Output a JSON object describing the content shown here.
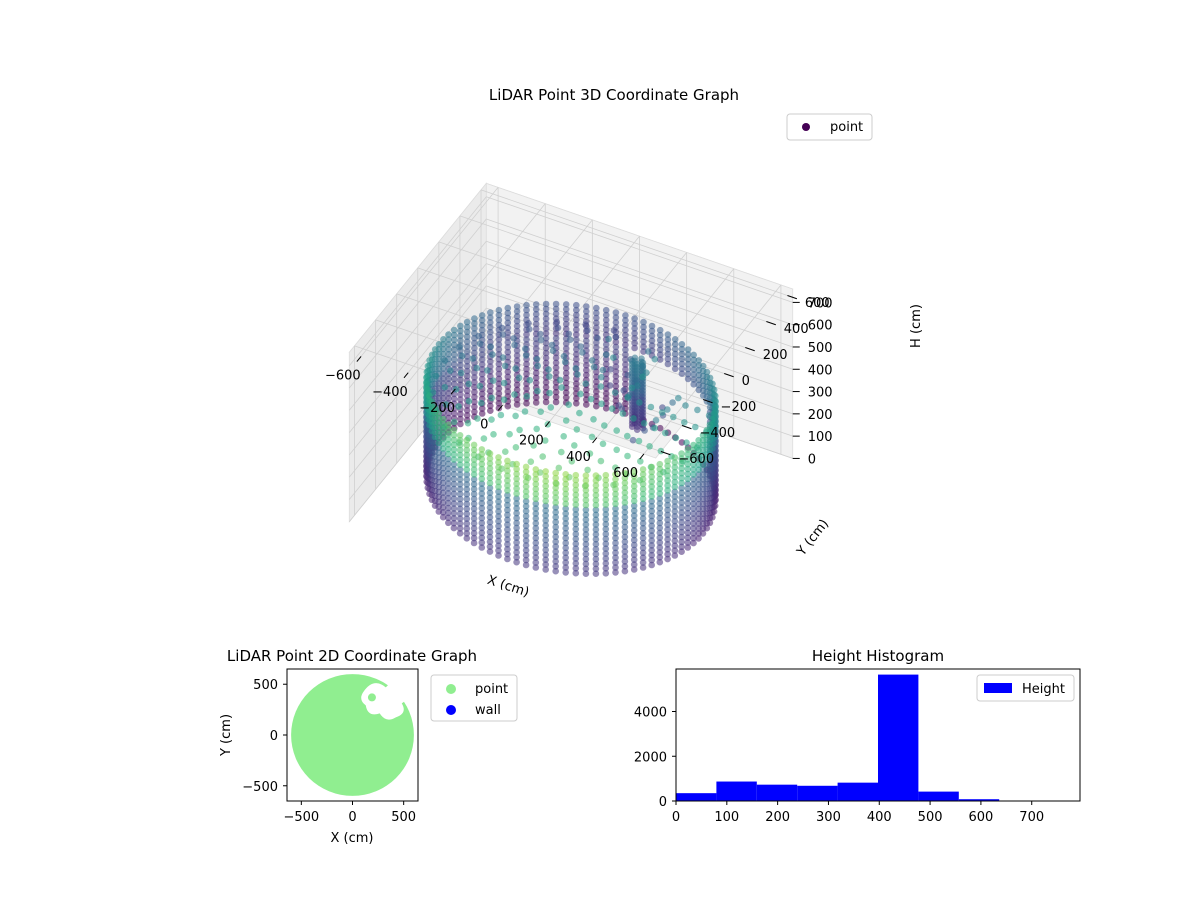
{
  "chart_data": [
    {
      "type": "scatter",
      "projection": "3d",
      "title": "LiDAR Point 3D Coordinate Graph",
      "xlabel": "X (cm)",
      "ylabel": "Y (cm)",
      "zlabel": "H (cm)",
      "xlim": [
        -650,
        650
      ],
      "ylim": [
        -650,
        650
      ],
      "zlim": [
        760,
        0
      ],
      "z_axis_inverted": true,
      "xticks": [
        "−600",
        "−400",
        "−200",
        "0",
        "200",
        "400",
        "600"
      ],
      "yticks": [
        "−600",
        "−400",
        "−200",
        "0",
        "200",
        "400",
        "600"
      ],
      "zticks": [
        "0",
        "100",
        "200",
        "300",
        "400",
        "500",
        "600",
        "700"
      ],
      "grid": true,
      "colormap": "viridis",
      "legend": {
        "placement": "top-right",
        "entries": [
          {
            "name": "point",
            "color": "#440154"
          }
        ]
      },
      "description_of_data": {
        "outer_wall_radius": 560,
        "wall_height_range": [
          0,
          470
        ],
        "floor_height": 450,
        "interior_object_xy": [
          200,
          360
        ],
        "interior_object_height_range": [
          150,
          450
        ]
      }
    },
    {
      "type": "scatter",
      "title": "LiDAR Point 2D Coordinate Graph",
      "xlabel": "X (cm)",
      "ylabel": "Y (cm)",
      "xlim": [
        -640,
        640
      ],
      "ylim": [
        -650,
        650
      ],
      "xticks": [
        -500,
        0,
        500
      ],
      "yticks": [
        -500,
        0,
        500
      ],
      "legend": {
        "placement": "outside-right",
        "entries": [
          {
            "name": "point",
            "color": "#90ee90"
          },
          {
            "name": "wall",
            "color": "#0000ff"
          }
        ]
      },
      "region": {
        "radius": 600,
        "hole_center": [
          200,
          380
        ]
      }
    },
    {
      "type": "bar",
      "subtype": "histogram",
      "title": "Height Histogram",
      "xlim": [
        0,
        795
      ],
      "ylim": [
        0,
        5900
      ],
      "xticks": [
        0,
        100,
        200,
        300,
        400,
        500,
        600,
        700
      ],
      "yticks": [
        0,
        2000,
        4000
      ],
      "legend": {
        "placement": "top-right",
        "entries": [
          {
            "name": "Height",
            "color": "#0000ff"
          }
        ]
      },
      "bin_edges": [
        0,
        79.5,
        159,
        238.5,
        318,
        397.5,
        477,
        556.5,
        636,
        715.5,
        795
      ],
      "values": [
        350,
        870,
        730,
        680,
        820,
        5650,
        420,
        80,
        10,
        5
      ]
    }
  ]
}
